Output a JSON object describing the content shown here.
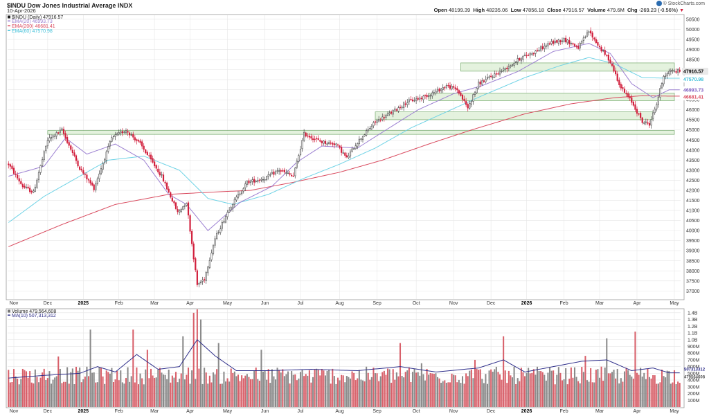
{
  "header": {
    "symbol_title": "$INDU Dow Jones Industrial Average INDX",
    "date": "10-Apr-2026",
    "open_label": "Open",
    "open": "48199.39",
    "high_label": "High",
    "high": "48235.06",
    "low_label": "Low",
    "low": "47856.18",
    "close_label": "Close",
    "close": "47916.57",
    "volume_label": "Volume",
    "volume": "479.6M",
    "chg_label": "Chg",
    "chg": "-269.23 (-0.56%)",
    "brand": "© StockCharts.com"
  },
  "legend": {
    "price": "$INDU (Daily) 47916.57",
    "ema20": "EMA(20) 46993.73",
    "ema200": "EMA(200) 46681.41",
    "ema60": "EMA(60) 47570.98",
    "volume": "Volume 479,564,608",
    "ma10": "MA(10) 507,313,312"
  },
  "badges": {
    "close": "47916.57",
    "ema60": "47570.98",
    "ema20": "46993.73",
    "ema200": "46681.41",
    "vol_a": "507313312",
    "vol_b": "479564608"
  },
  "colors": {
    "up": "#4a4a4a",
    "down": "#d11f3c",
    "vol_up": "#8a8a8a",
    "vol_down": "#d8606a",
    "ema20": "#9b7fd1",
    "ema60": "#6fd3e6",
    "ema200": "#d94a5e",
    "ma10": "#2e2e8a",
    "zone_fill": "#dff0d8",
    "zone_stroke": "#74a96b",
    "grid": "#e6e6e6"
  },
  "chart_data": {
    "type": "candlestick",
    "symbol": "$INDU",
    "title": "$INDU Dow Jones Industrial Average INDX",
    "period": "Daily",
    "y_ticks": [
      37000,
      37500,
      38000,
      38500,
      39000,
      39500,
      40000,
      40500,
      41000,
      41500,
      42000,
      42500,
      43000,
      43500,
      44000,
      44500,
      45000,
      45500,
      46000,
      46500,
      47000,
      47500,
      48000,
      48500,
      49000,
      49500,
      50000,
      50500
    ],
    "ylim": [
      36600,
      50700
    ],
    "x_labels": [
      "Nov",
      "Dec",
      "2025",
      "Feb",
      "Mar",
      "Apr",
      "May",
      "Jun",
      "Jul",
      "Aug",
      "Sep",
      "Oct",
      "Nov",
      "Dec",
      "2026",
      "Feb",
      "Mar",
      "Apr",
      "May"
    ],
    "x_bold": [
      "2025",
      "2026"
    ],
    "x_label_idx": [
      3,
      22,
      42,
      62,
      82,
      102,
      123,
      144,
      164,
      186,
      207,
      229,
      250,
      271,
      291,
      312,
      332,
      353,
      374
    ],
    "n_bars": 378,
    "price_anchors": [
      [
        0,
        43300
      ],
      [
        8,
        42200
      ],
      [
        14,
        41900
      ],
      [
        22,
        44500
      ],
      [
        30,
        45000
      ],
      [
        40,
        43100
      ],
      [
        48,
        42100
      ],
      [
        58,
        44600
      ],
      [
        66,
        45000
      ],
      [
        74,
        44300
      ],
      [
        86,
        42700
      ],
      [
        95,
        40900
      ],
      [
        100,
        41400
      ],
      [
        106,
        37300
      ],
      [
        110,
        37600
      ],
      [
        116,
        39600
      ],
      [
        124,
        41100
      ],
      [
        134,
        42400
      ],
      [
        144,
        42600
      ],
      [
        152,
        43000
      ],
      [
        160,
        42700
      ],
      [
        166,
        44800
      ],
      [
        176,
        44400
      ],
      [
        184,
        44300
      ],
      [
        190,
        43600
      ],
      [
        196,
        44400
      ],
      [
        206,
        45400
      ],
      [
        214,
        45800
      ],
      [
        224,
        46400
      ],
      [
        232,
        46600
      ],
      [
        240,
        46900
      ],
      [
        246,
        47200
      ],
      [
        252,
        47000
      ],
      [
        258,
        46100
      ],
      [
        264,
        47300
      ],
      [
        272,
        47700
      ],
      [
        280,
        48100
      ],
      [
        288,
        48600
      ],
      [
        296,
        48900
      ],
      [
        304,
        49300
      ],
      [
        312,
        49500
      ],
      [
        320,
        49100
      ],
      [
        326,
        49900
      ],
      [
        332,
        49100
      ],
      [
        338,
        48400
      ],
      [
        344,
        47100
      ],
      [
        350,
        46400
      ],
      [
        356,
        45400
      ],
      [
        360,
        45300
      ],
      [
        364,
        46300
      ],
      [
        368,
        47700
      ],
      [
        371,
        47917
      ]
    ],
    "ema20_anchors": [
      [
        0,
        42700
      ],
      [
        20,
        43200
      ],
      [
        32,
        44600
      ],
      [
        44,
        43800
      ],
      [
        60,
        44300
      ],
      [
        76,
        43500
      ],
      [
        90,
        41800
      ],
      [
        100,
        41300
      ],
      [
        112,
        40000
      ],
      [
        130,
        41400
      ],
      [
        148,
        42200
      ],
      [
        162,
        43400
      ],
      [
        176,
        44200
      ],
      [
        196,
        44100
      ],
      [
        212,
        45000
      ],
      [
        230,
        46000
      ],
      [
        250,
        46800
      ],
      [
        266,
        47200
      ],
      [
        286,
        47900
      ],
      [
        306,
        48900
      ],
      [
        326,
        49300
      ],
      [
        338,
        48800
      ],
      [
        350,
        47300
      ],
      [
        362,
        46600
      ],
      [
        371,
        46994
      ]
    ],
    "ema60_anchors": [
      [
        0,
        40400
      ],
      [
        20,
        41700
      ],
      [
        40,
        42700
      ],
      [
        56,
        43500
      ],
      [
        76,
        43700
      ],
      [
        96,
        43000
      ],
      [
        112,
        41600
      ],
      [
        126,
        41300
      ],
      [
        146,
        41800
      ],
      [
        166,
        42600
      ],
      [
        186,
        43300
      ],
      [
        206,
        44100
      ],
      [
        226,
        45100
      ],
      [
        246,
        45900
      ],
      [
        266,
        46700
      ],
      [
        290,
        47600
      ],
      [
        310,
        48200
      ],
      [
        326,
        48600
      ],
      [
        340,
        48300
      ],
      [
        356,
        47600
      ],
      [
        371,
        47571
      ]
    ],
    "ema200_anchors": [
      [
        0,
        39200
      ],
      [
        30,
        40300
      ],
      [
        60,
        41300
      ],
      [
        90,
        41800
      ],
      [
        112,
        41900
      ],
      [
        136,
        42000
      ],
      [
        160,
        42400
      ],
      [
        186,
        42900
      ],
      [
        210,
        43500
      ],
      [
        236,
        44300
      ],
      [
        260,
        45000
      ],
      [
        290,
        45800
      ],
      [
        316,
        46300
      ],
      [
        340,
        46600
      ],
      [
        356,
        46700
      ],
      [
        371,
        46681
      ]
    ],
    "support_zones": [
      {
        "from_idx": 22,
        "to_idx": 374,
        "low": 44780,
        "high": 44970
      },
      {
        "from_idx": 206,
        "to_idx": 362,
        "low": 45510,
        "high": 45900
      },
      {
        "from_idx": 236,
        "to_idx": 374,
        "low": 46450,
        "high": 46830
      },
      {
        "from_idx": 254,
        "to_idx": 374,
        "low": 47920,
        "high": 48330
      }
    ],
    "volume": {
      "y_ticks": [
        100000000,
        200000000,
        300000000,
        400000000,
        500000000,
        600000000,
        700000000,
        800000000,
        900000000,
        1000000000,
        1100000000,
        1200000000,
        1300000000,
        1400000000
      ],
      "y_tick_labels": [
        "100M",
        "200M",
        "300M",
        "400M",
        "500M",
        "600M",
        "700M",
        "800M",
        "900M",
        "1.0B",
        "1.1B",
        "1.2B",
        "1.3B",
        "1.4B"
      ],
      "ylim": [
        0,
        1450000000
      ],
      "base_level": 480000000,
      "spikes": [
        [
          28,
          750000000
        ],
        [
          46,
          1150000000
        ],
        [
          70,
          1150000000
        ],
        [
          78,
          850000000
        ],
        [
          98,
          1050000000
        ],
        [
          104,
          1400000000
        ],
        [
          106,
          1450000000
        ],
        [
          108,
          1300000000
        ],
        [
          118,
          950000000
        ],
        [
          142,
          850000000
        ],
        [
          220,
          950000000
        ],
        [
          232,
          650000000
        ],
        [
          262,
          700000000
        ],
        [
          278,
          1050000000
        ],
        [
          324,
          760000000
        ],
        [
          336,
          1020000000
        ],
        [
          352,
          1120000000
        ]
      ],
      "ma10_anchors": [
        [
          0,
          430000000
        ],
        [
          20,
          470000000
        ],
        [
          40,
          500000000
        ],
        [
          50,
          600000000
        ],
        [
          60,
          520000000
        ],
        [
          72,
          780000000
        ],
        [
          84,
          560000000
        ],
        [
          96,
          600000000
        ],
        [
          106,
          1000000000
        ],
        [
          116,
          760000000
        ],
        [
          128,
          540000000
        ],
        [
          146,
          540000000
        ],
        [
          170,
          560000000
        ],
        [
          196,
          540000000
        ],
        [
          220,
          600000000
        ],
        [
          240,
          520000000
        ],
        [
          264,
          580000000
        ],
        [
          278,
          700000000
        ],
        [
          290,
          520000000
        ],
        [
          306,
          600000000
        ],
        [
          322,
          680000000
        ],
        [
          336,
          700000000
        ],
        [
          350,
          540000000
        ],
        [
          362,
          580000000
        ],
        [
          371,
          507313312
        ]
      ]
    }
  }
}
